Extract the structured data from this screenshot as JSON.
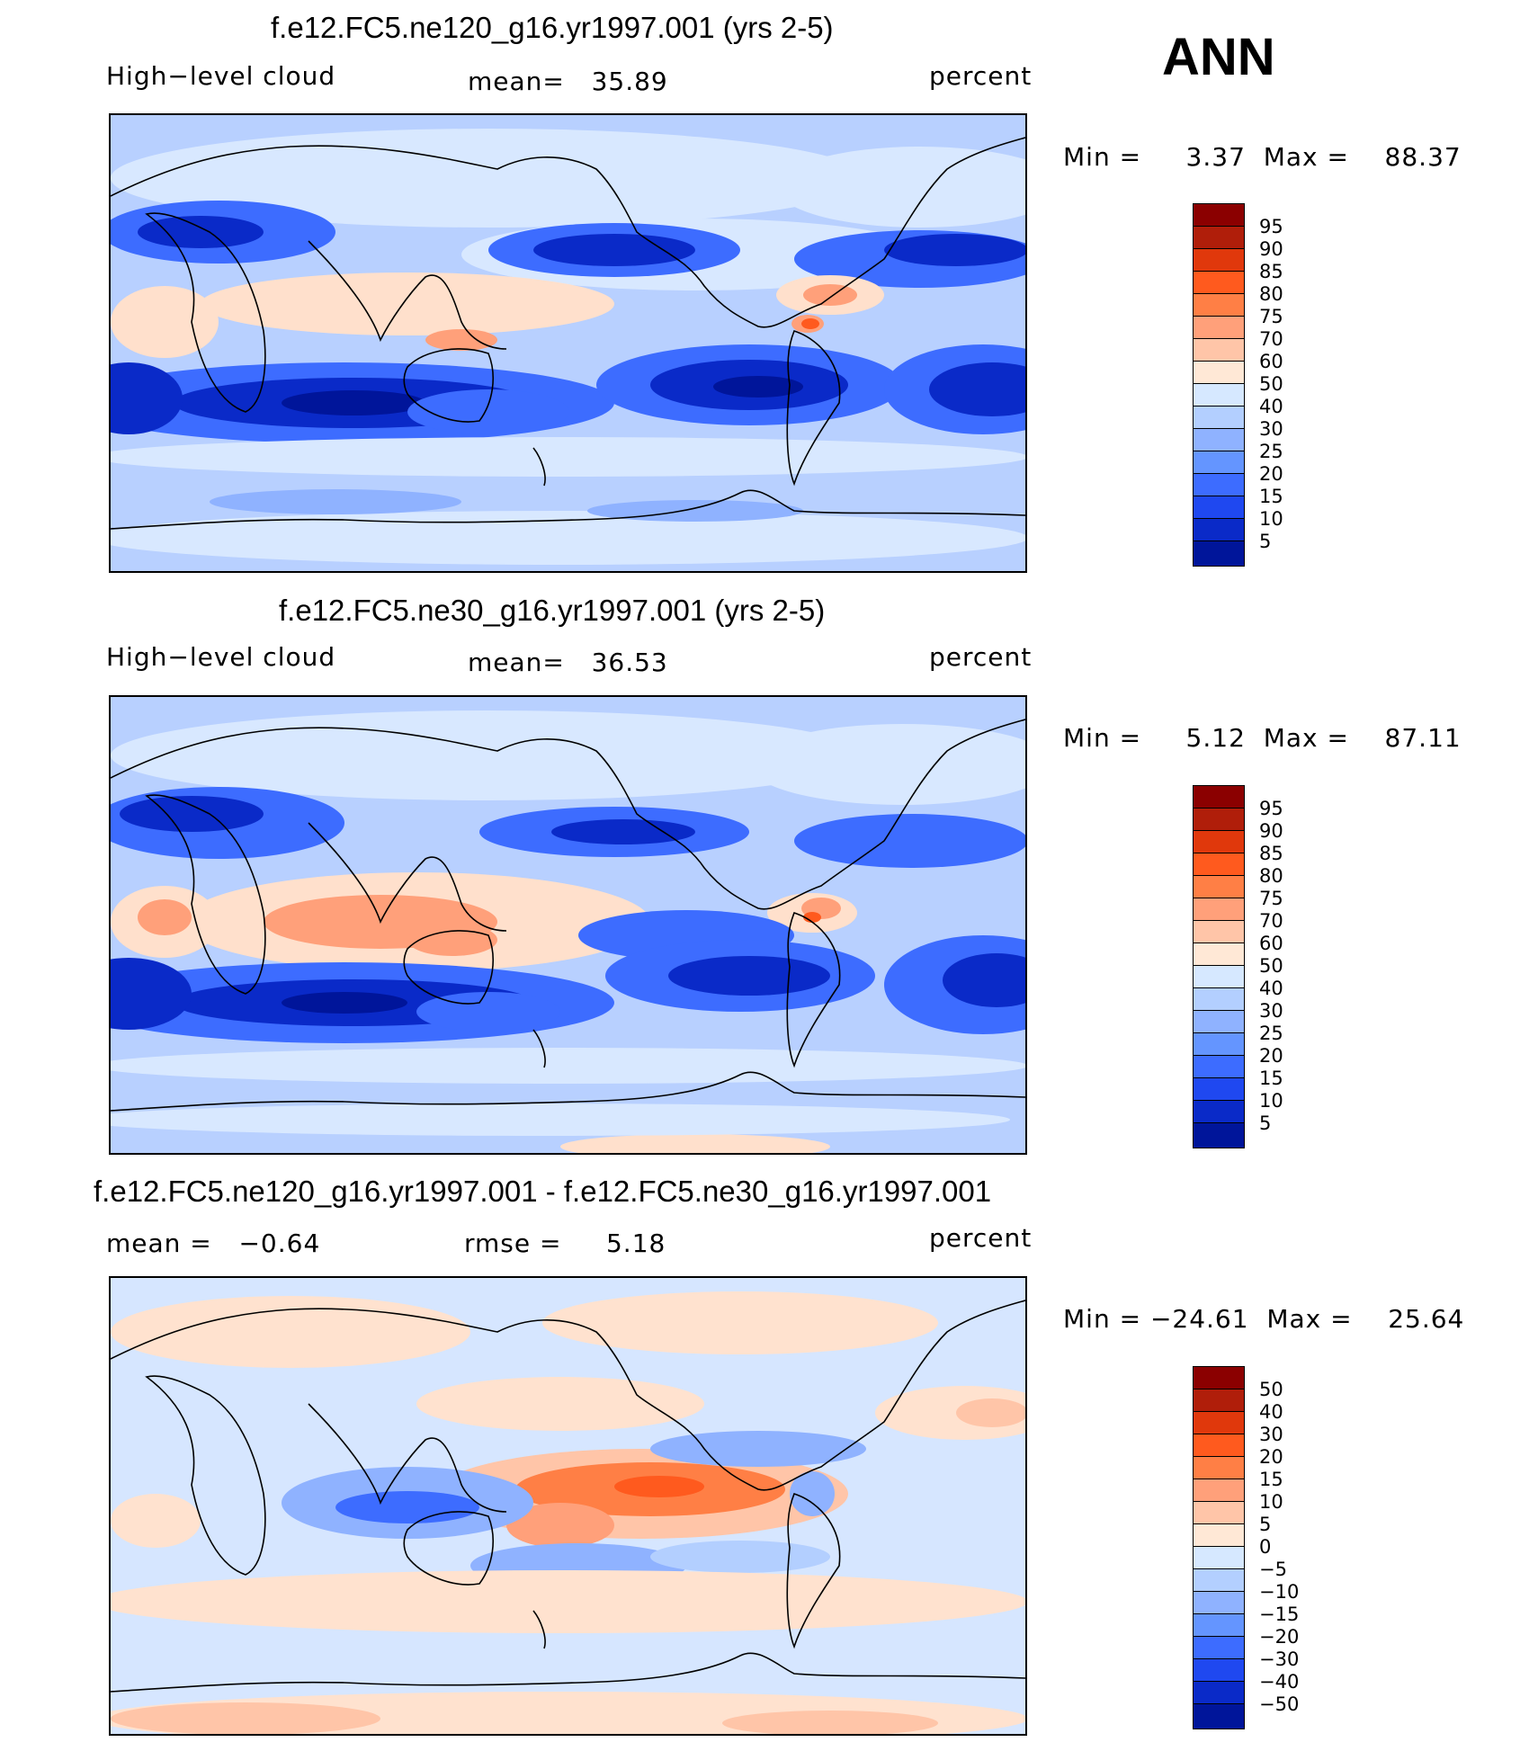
{
  "season": "ANN",
  "panels": [
    {
      "title": "f.e12.FC5.ne120_g16.yr1997.001 (yrs 2-5)",
      "left_label": "High−level cloud",
      "mid_label": "mean=   35.89",
      "units": "percent",
      "minmax": "Min =     3.37  Max =    88.37",
      "colorbar": {
        "colors": [
          "#8b0000",
          "#b01e0a",
          "#e0380c",
          "#ff5a1e",
          "#ff7f45",
          "#ffa07a",
          "#ffc5a8",
          "#ffe8d6",
          "#d6e8ff",
          "#b3cfff",
          "#8fb2ff",
          "#6495ff",
          "#3d6cff",
          "#1f48f0",
          "#0a2ac8",
          "#00159a"
        ],
        "labels": [
          "95",
          "90",
          "85",
          "80",
          "75",
          "70",
          "60",
          "50",
          "40",
          "30",
          "25",
          "20",
          "15",
          "10",
          "5"
        ]
      }
    },
    {
      "title": "f.e12.FC5.ne30_g16.yr1997.001 (yrs 2-5)",
      "left_label": "High−level cloud",
      "mid_label": "mean=   36.53",
      "units": "percent",
      "minmax": "Min =     5.12  Max =    87.11",
      "colorbar": {
        "colors": [
          "#8b0000",
          "#b01e0a",
          "#e0380c",
          "#ff5a1e",
          "#ff7f45",
          "#ffa07a",
          "#ffc5a8",
          "#ffe8d6",
          "#d6e8ff",
          "#b3cfff",
          "#8fb2ff",
          "#6495ff",
          "#3d6cff",
          "#1f48f0",
          "#0a2ac8",
          "#00159a"
        ],
        "labels": [
          "95",
          "90",
          "85",
          "80",
          "75",
          "70",
          "60",
          "50",
          "40",
          "30",
          "25",
          "20",
          "15",
          "10",
          "5"
        ]
      }
    },
    {
      "title": "f.e12.FC5.ne120_g16.yr1997.001 - f.e12.FC5.ne30_g16.yr1997.001",
      "left_label": "mean =   −0.64",
      "mid_label": "rmse =     5.18",
      "units": "percent",
      "minmax": "Min = −24.61  Max =    25.64",
      "colorbar": {
        "colors": [
          "#8b0000",
          "#b01e0a",
          "#e0380c",
          "#ff5a1e",
          "#ff7f45",
          "#ffa07a",
          "#ffc5a8",
          "#ffe8d6",
          "#d6e8ff",
          "#b3cfff",
          "#8fb2ff",
          "#6495ff",
          "#3d6cff",
          "#1f48f0",
          "#0a2ac8",
          "#00159a"
        ],
        "labels": [
          "50",
          "40",
          "30",
          "20",
          "15",
          "10",
          "5",
          "0",
          "−5",
          "−10",
          "−15",
          "−20",
          "−30",
          "−40",
          "−50"
        ]
      }
    }
  ],
  "map_colors": {
    "ocean_base": "#b8d0ff",
    "light": "#d8e8ff",
    "low1": "#8fb2ff",
    "low2": "#3d6cff",
    "low3": "#0a2ac8",
    "low4": "#00159a",
    "warm1": "#ffe0cc",
    "warm2": "#ffa07a",
    "warm3": "#ff5a1e",
    "diff_pos": "#ffe2cf",
    "diff_neg": "#d6e6ff"
  }
}
